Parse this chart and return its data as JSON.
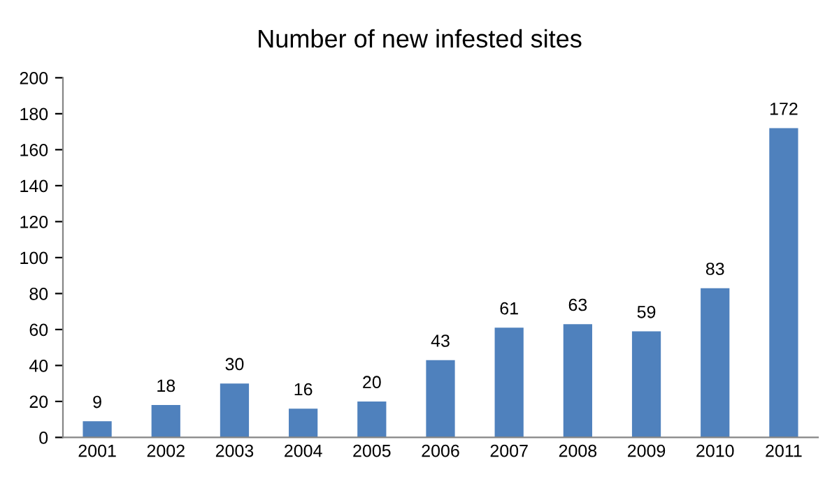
{
  "chart_data": {
    "type": "bar",
    "title": "Number of new infested sites",
    "categories": [
      "2001",
      "2002",
      "2003",
      "2004",
      "2005",
      "2006",
      "2007",
      "2008",
      "2009",
      "2010",
      "2011"
    ],
    "values": [
      9,
      18,
      30,
      16,
      20,
      43,
      61,
      63,
      59,
      83,
      172
    ],
    "color": "#4f81bd",
    "ylim": [
      0,
      200
    ],
    "yticks": [
      0,
      20,
      40,
      60,
      80,
      100,
      120,
      140,
      160,
      180,
      200
    ],
    "data_labels": true
  }
}
